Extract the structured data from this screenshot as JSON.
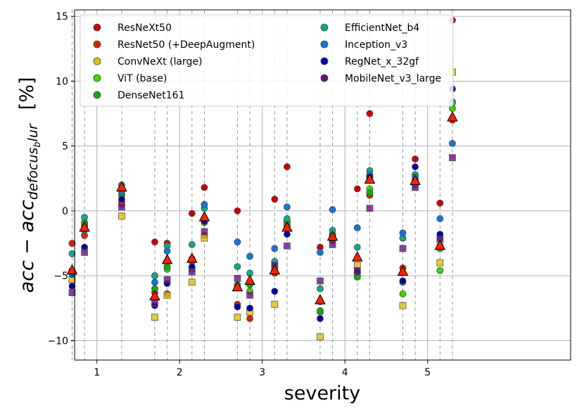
{
  "chart_data": {
    "type": "scatter",
    "title": "",
    "xlabel": "severity",
    "ylabel": "acc − acc_defocus_blur   [%]",
    "ylabel_parts": {
      "base": "acc − acc",
      "sub": "defocus",
      "mid": "b",
      "sub2": "lur",
      "unit": "[%]"
    },
    "xlim": [
      0.73,
      6.73
    ],
    "ylim": [
      -11.5,
      15.5
    ],
    "x_ticks": [
      1,
      2,
      3,
      4,
      5
    ],
    "x_tick_labels": [
      "1",
      "2",
      "3",
      "4",
      "5"
    ],
    "y_ticks": [
      -10,
      -5,
      0,
      5,
      10,
      15
    ],
    "y_tick_labels": [
      "−10",
      "−5",
      "0",
      "5",
      "10",
      "15"
    ],
    "grid": true,
    "legend_position": "top-left",
    "series": [
      {
        "name": "ResNeXt50",
        "color": "#cc0000",
        "values": [
          [
            -2.5,
            -1.5,
            0.7,
            -2.4,
            -2.5,
            -0.2,
            1.8,
            0.0,
            -5.5,
            0.9,
            3.4,
            -2.8,
            -2.3,
            1.7,
            7.5,
            -2.1,
            4.0,
            0.6,
            14.7
          ],
          [
            -4.6,
            -1.2,
            0.4,
            -6.0,
            -4.3,
            -3.5,
            -0.5,
            -7.0,
            -6.0,
            -4.0,
            -1.0,
            -7.0,
            -2.0,
            -3.0,
            2.0,
            -5.0,
            2.5,
            -2.5,
            7.0
          ]
        ]
      },
      {
        "name": "ResNet50 (+DeepAugment)",
        "color": "#dd2200",
        "values": [
          [
            -2.5,
            -1.9,
            0.5,
            -6.3,
            -6.4,
            -4.4,
            -1.9,
            -7.2,
            -8.3,
            -4.8,
            -1.4,
            -7.0,
            -2.1,
            -5.0,
            1.2,
            -4.4,
            2.2,
            -2.7,
            7.0
          ],
          [
            0,
            0,
            0,
            0,
            0,
            0,
            0,
            0,
            0,
            0,
            0,
            0,
            0,
            0,
            0,
            0,
            0,
            0,
            0
          ]
        ]
      },
      {
        "name": "ConvNeXt (large)",
        "color": "#e0c000",
        "values": [
          [
            -5.3,
            -1.2,
            -0.4,
            -8.2,
            -6.5,
            -5.5,
            -2.1,
            -8.2,
            -7.8,
            -7.2,
            -1.1,
            -9.7,
            -2.0,
            -4.2,
            2.6,
            -7.3,
            2.1,
            -4.0,
            10.7
          ],
          [
            0,
            0,
            0,
            0,
            0,
            0,
            0,
            0,
            0,
            0,
            0,
            0,
            0,
            0,
            0,
            0,
            0,
            0,
            0
          ]
        ]
      },
      {
        "name": "ViT (base)",
        "color": "#33dd00",
        "values": [
          [
            -4.6,
            -0.9,
            1.3,
            -5.0,
            -4.5,
            -4.5,
            -0.8,
            -5.8,
            -6.2,
            -4.3,
            -1.2,
            -7.8,
            -2.0,
            -4.8,
            1.7,
            -6.4,
            2.0,
            -4.6,
            7.9
          ],
          [
            0,
            0,
            0,
            0,
            0,
            0,
            0,
            0,
            0,
            0,
            0,
            0,
            0,
            0,
            0,
            0,
            0,
            0,
            0
          ]
        ]
      },
      {
        "name": "DenseNet161",
        "color": "#11aa11",
        "values": [
          [
            -4.7,
            -1.0,
            1.2,
            -6.0,
            -4.3,
            -3.9,
            -0.9,
            -5.7,
            -5.7,
            -4.6,
            -0.8,
            -7.7,
            -1.8,
            -5.1,
            1.4,
            -5.5,
            2.4,
            -2.9,
            8.4
          ],
          [
            0,
            0,
            0,
            0,
            0,
            0,
            0,
            0,
            0,
            0,
            0,
            0,
            0,
            0,
            0,
            0,
            0,
            0,
            0
          ]
        ]
      },
      {
        "name": "EfficientNet_b4",
        "color": "#11aa88",
        "values": [
          [
            -3.3,
            -0.5,
            2.0,
            -5.0,
            -2.7,
            -2.6,
            0.2,
            -4.3,
            -4.8,
            -3.9,
            -0.6,
            -6.0,
            -1.5,
            -2.8,
            3.1,
            -2.1,
            2.8,
            -2.1,
            8.3
          ],
          [
            0,
            0,
            0,
            0,
            0,
            0,
            0,
            0,
            0,
            0,
            0,
            0,
            0,
            0,
            0,
            0,
            0,
            0,
            0
          ]
        ]
      },
      {
        "name": "Inception_v3",
        "color": "#1177dd",
        "values": [
          [
            -4.9,
            -1.5,
            1.5,
            -5.5,
            -3.1,
            -3.7,
            0.5,
            -2.4,
            -3.5,
            -2.9,
            0.3,
            -3.2,
            0.1,
            -1.3,
            2.8,
            -1.7,
            2.6,
            -0.6,
            5.2
          ],
          [
            0,
            0,
            0,
            0,
            0,
            0,
            0,
            0,
            0,
            0,
            0,
            0,
            0,
            0,
            0,
            0,
            0,
            0,
            0
          ]
        ]
      },
      {
        "name": "RegNet_x_32gf",
        "color": "#0000aa",
        "values": [
          [
            -5.8,
            -2.8,
            0.9,
            -7.3,
            -5.6,
            -4.3,
            -0.8,
            -7.4,
            -7.5,
            -6.2,
            -1.8,
            -8.3,
            -2.1,
            -4.7,
            2.6,
            -5.4,
            3.4,
            -1.8,
            9.4
          ],
          [
            0,
            0,
            0,
            0,
            0,
            0,
            0,
            0,
            0,
            0,
            0,
            0,
            0,
            0,
            0,
            0,
            0,
            0,
            0
          ]
        ]
      },
      {
        "name": "MobileNet_v3_large",
        "color": "#661188",
        "values": [
          [
            -6.3,
            -3.2,
            0.3,
            -7.1,
            -5.3,
            -4.7,
            -1.6,
            -5.2,
            -6.5,
            -4.2,
            -2.7,
            -5.4,
            -2.6,
            -4.6,
            0.2,
            -2.9,
            1.8,
            -2.2,
            4.1
          ],
          [
            0,
            0,
            0,
            0,
            0,
            0,
            0,
            0,
            0,
            0,
            0,
            0,
            0,
            0,
            0,
            0,
            0,
            0,
            0
          ]
        ]
      }
    ],
    "group_x": [
      0.7,
      0.85,
      1.3,
      1.7,
      1.85,
      2.15,
      2.3,
      2.7,
      2.85,
      3.15,
      3.3,
      3.7,
      3.85,
      4.15,
      4.3,
      4.7,
      4.85,
      5.15,
      5.3
    ],
    "mean_markers": [
      -4.6,
      -1.3,
      1.8,
      -6.6,
      -3.8,
      -3.7,
      -0.5,
      -5.9,
      -5.4,
      -4.6,
      -1.3,
      -6.9,
      -2.0,
      -3.6,
      2.4,
      -4.7,
      2.3,
      -2.7,
      7.2
    ],
    "mean_color": "#ff2200"
  }
}
